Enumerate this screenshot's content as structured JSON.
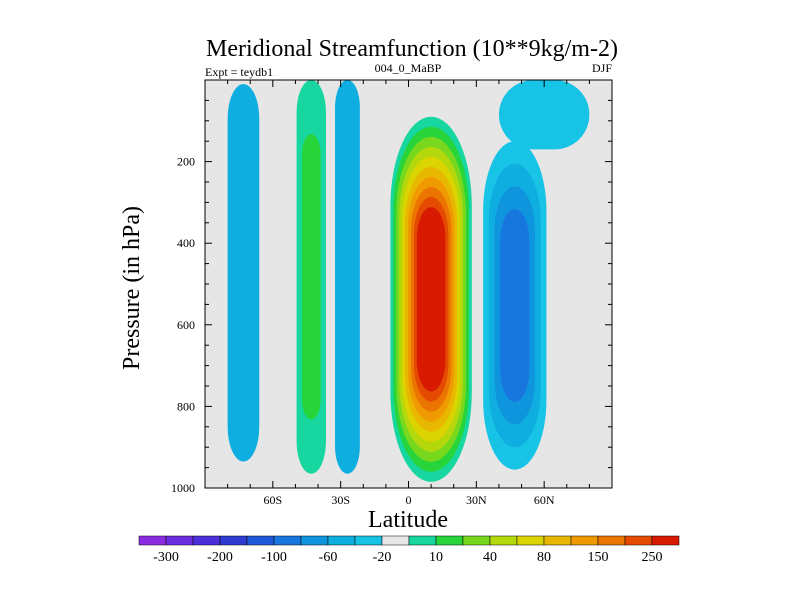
{
  "chart_data": {
    "type": "filled-contour",
    "title": "Meridional Streamfunction (10**9kg/m-2)",
    "left_string": "Expt = teydb1",
    "center_string": "004_0_MaBP",
    "right_string": "DJF",
    "xlabel": "Latitude",
    "ylabel": "Pressure (in hPa)",
    "xlim": [
      -90,
      90
    ],
    "ylim": [
      1000,
      0
    ],
    "x_ticks": [
      {
        "value": -60,
        "label": "60S"
      },
      {
        "value": -30,
        "label": "30S"
      },
      {
        "value": 0,
        "label": "0"
      },
      {
        "value": 30,
        "label": "30N"
      },
      {
        "value": 60,
        "label": "60N"
      }
    ],
    "y_ticks": [
      {
        "value": 200,
        "label": "200"
      },
      {
        "value": 400,
        "label": "400"
      },
      {
        "value": 600,
        "label": "600"
      },
      {
        "value": 800,
        "label": "800"
      },
      {
        "value": 1000,
        "label": "1000"
      }
    ],
    "levels": [
      -300,
      -250,
      -200,
      -150,
      -100,
      -80,
      -60,
      -40,
      -20,
      -10,
      10,
      20,
      40,
      60,
      80,
      100,
      150,
      200,
      250,
      300
    ],
    "colorbar_labels": [
      "-300",
      "-200",
      "-100",
      "-60",
      "-20",
      "10",
      "40",
      "80",
      "150",
      "250"
    ],
    "colorbar_colors": [
      "#8a2be2",
      "#6a2ee0",
      "#4b2fd8",
      "#2e3ad0",
      "#1f58d8",
      "#1777df",
      "#0f95de",
      "#0faee0",
      "#18c4e6",
      "#e6e6e6",
      "#17d6a0",
      "#27d43a",
      "#77d81e",
      "#b5d80d",
      "#dbd400",
      "#e8b800",
      "#ef9a00",
      "#ec7400",
      "#e44a00",
      "#d81b00"
    ],
    "background_color": "#e6e6e6",
    "cells": [
      {
        "name": "sh-polar-cell",
        "lat_center": -73,
        "lat_half_width": 7,
        "p_top": 10,
        "p_bottom": 935,
        "levels": [
          {
            "level": -20,
            "color": "#0faee0"
          }
        ]
      },
      {
        "name": "sh-ferrel-cell",
        "lat_center": -43,
        "lat_half_width": 6.5,
        "p_top": 0,
        "p_bottom": 965,
        "levels": [
          {
            "level": 10,
            "color": "#17d6a0"
          },
          {
            "level": 20,
            "color": "#27d43a"
          }
        ]
      },
      {
        "name": "sh-subtropical-cell",
        "lat_center": -27,
        "lat_half_width": 5.5,
        "p_top": 0,
        "p_bottom": 965,
        "levels": [
          {
            "level": -20,
            "color": "#0faee0"
          }
        ]
      },
      {
        "name": "hadley-cell",
        "lat_center": 10,
        "lat_half_width": 18,
        "p_top": 90,
        "p_bottom": 985,
        "levels": [
          {
            "level": 10,
            "color": "#17d6a0"
          },
          {
            "level": 20,
            "color": "#27d43a"
          },
          {
            "level": 40,
            "color": "#77d81e"
          },
          {
            "level": 60,
            "color": "#b5d80d"
          },
          {
            "level": 80,
            "color": "#dbd400"
          },
          {
            "level": 100,
            "color": "#e8b800"
          },
          {
            "level": 150,
            "color": "#ef9a00"
          },
          {
            "level": 200,
            "color": "#ec7400"
          },
          {
            "level": 250,
            "color": "#e44a00"
          },
          {
            "level": 300,
            "color": "#d81b00"
          }
        ]
      },
      {
        "name": "nh-subtropical-cell",
        "lat_center": 47,
        "lat_half_width": 14,
        "p_top": 150,
        "p_bottom": 955,
        "levels": [
          {
            "level": -10,
            "color": "#18c4e6"
          },
          {
            "level": -20,
            "color": "#0faee0"
          },
          {
            "level": -40,
            "color": "#0f95de"
          },
          {
            "level": -60,
            "color": "#1777df"
          }
        ]
      },
      {
        "name": "nh-upper-cell",
        "lat_center": 60,
        "lat_half_width": 20,
        "p_top": 0,
        "p_bottom": 170,
        "levels": [
          {
            "level": -10,
            "color": "#18c4e6"
          }
        ]
      }
    ]
  }
}
